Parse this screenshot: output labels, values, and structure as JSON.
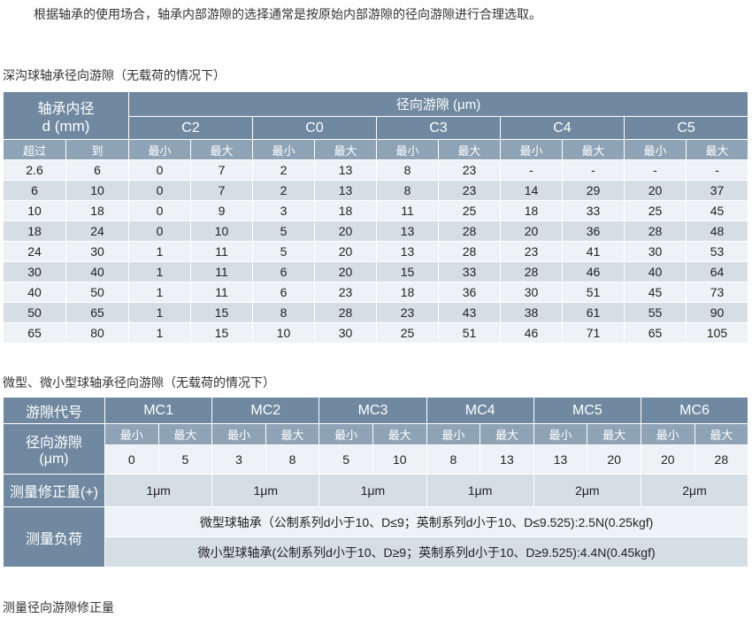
{
  "intro": "根据轴承的使用场合，轴承内部游隙的选择通常是按原始内部游隙的径向游隙进行合理选取。",
  "table1": {
    "title": "深沟球轴承径向游隙（无载荷的情况下）",
    "bore_label": "轴承内径",
    "bore_unit": "d (mm)",
    "clearance_label": "径向游隙 (μm)",
    "groups": [
      "C2",
      "C0",
      "C3",
      "C4",
      "C5"
    ],
    "over": "超过",
    "to": "到",
    "min": "最小",
    "max": "最大",
    "rows": [
      [
        "2.6",
        "6",
        "0",
        "7",
        "2",
        "13",
        "8",
        "23",
        "-",
        "-",
        "-",
        "-"
      ],
      [
        "6",
        "10",
        "0",
        "7",
        "2",
        "13",
        "8",
        "23",
        "14",
        "29",
        "20",
        "37"
      ],
      [
        "10",
        "18",
        "0",
        "9",
        "3",
        "18",
        "11",
        "25",
        "18",
        "33",
        "25",
        "45"
      ],
      [
        "18",
        "24",
        "0",
        "10",
        "5",
        "20",
        "13",
        "28",
        "20",
        "36",
        "28",
        "48"
      ],
      [
        "24",
        "30",
        "1",
        "11",
        "5",
        "20",
        "13",
        "28",
        "23",
        "41",
        "30",
        "53"
      ],
      [
        "30",
        "40",
        "1",
        "11",
        "6",
        "20",
        "15",
        "33",
        "28",
        "46",
        "40",
        "64"
      ],
      [
        "40",
        "50",
        "1",
        "11",
        "6",
        "23",
        "18",
        "36",
        "30",
        "51",
        "45",
        "73"
      ],
      [
        "50",
        "65",
        "1",
        "15",
        "8",
        "28",
        "23",
        "43",
        "38",
        "61",
        "55",
        "90"
      ],
      [
        "65",
        "80",
        "1",
        "15",
        "10",
        "30",
        "25",
        "51",
        "46",
        "71",
        "65",
        "105"
      ]
    ]
  },
  "table2": {
    "title": "微型、微小型球轴承径向游隙（无载荷的情况下）",
    "code_label": "游隙代号",
    "groups": [
      "MC1",
      "MC2",
      "MC3",
      "MC4",
      "MC5",
      "MC6"
    ],
    "clearance_label": "径向游隙",
    "clearance_unit": "(μm)",
    "min": "最小",
    "max": "最大",
    "values": [
      "0",
      "5",
      "3",
      "8",
      "5",
      "10",
      "8",
      "13",
      "13",
      "20",
      "20",
      "28"
    ],
    "correction_label": "测量修正量(+)",
    "corrections": [
      "1μm",
      "1μm",
      "1μm",
      "1μm",
      "2μm",
      "2μm"
    ],
    "load_label": "测量负荷",
    "loads": [
      "微型球轴承（公制系列d小于10、D≤9；英制系列d小于10、D≤9.525):2.5N(0.25kgf)",
      "微小型球轴承(公制系列d小于10、D≥9；英制系列d小于10、D≥9.525):4.4N(0.45kgf)"
    ]
  },
  "footer_title": "测量径向游隙修正量"
}
